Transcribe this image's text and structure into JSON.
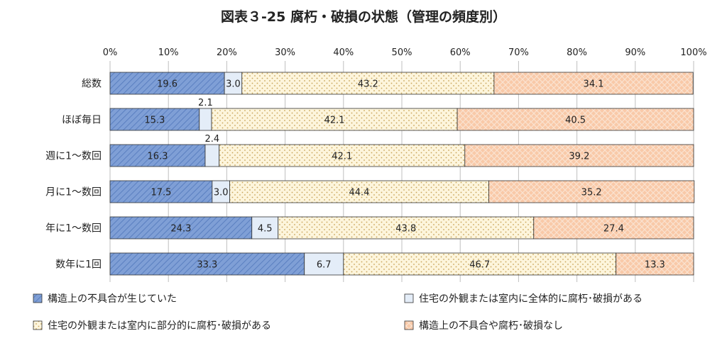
{
  "chart_data": {
    "type": "bar",
    "stacked": true,
    "orientation": "horizontal",
    "percent_stacked": true,
    "title": "図表３-25 腐朽・破損の状態（管理の頻度別）",
    "xlim": [
      0,
      100
    ],
    "x_ticks": [
      "0%",
      "10%",
      "20%",
      "30%",
      "40%",
      "50%",
      "60%",
      "70%",
      "80%",
      "90%",
      "100%"
    ],
    "grid": true,
    "legend_position": "bottom",
    "categories": [
      "総数",
      "ほぼ毎日",
      "週に1～数回",
      "月に1～数回",
      "年に1～数回",
      "数年に1回"
    ],
    "series": [
      {
        "name": "構造上の不具合が生じていた",
        "values": [
          19.6,
          15.3,
          16.3,
          17.5,
          24.3,
          33.3
        ],
        "color": "#7f9fd6",
        "pattern": "diagonal-hatch"
      },
      {
        "name": "住宅の外観または室内に全体的に腐朽･破損がある",
        "values": [
          3.0,
          2.1,
          2.4,
          3.0,
          4.5,
          6.7
        ],
        "color": "#e4edf8",
        "pattern": "solid"
      },
      {
        "name": "住宅の外観または室内に部分的に腐朽･破損がある",
        "values": [
          43.2,
          42.1,
          42.1,
          44.4,
          43.8,
          46.7
        ],
        "color": "#fdf5dc",
        "pattern": "dots"
      },
      {
        "name": "構造上の不具合や腐朽･破損なし",
        "values": [
          34.1,
          40.5,
          39.2,
          35.2,
          27.4,
          13.3
        ],
        "color": "#f9c9a8",
        "pattern": "cross-hatch"
      }
    ],
    "value_labels": [
      [
        "19.6",
        "3.0",
        "43.2",
        "34.1"
      ],
      [
        "15.3",
        "2.1",
        "42.1",
        "40.5"
      ],
      [
        "16.3",
        "2.4",
        "42.1",
        "39.2"
      ],
      [
        "17.5",
        "3.0",
        "44.4",
        "35.2"
      ],
      [
        "24.3",
        "4.5",
        "43.8",
        "27.4"
      ],
      [
        "33.3",
        "6.7",
        "46.7",
        "13.3"
      ]
    ]
  }
}
